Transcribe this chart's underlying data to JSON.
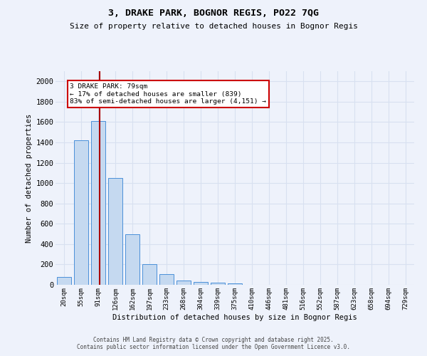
{
  "title1": "3, DRAKE PARK, BOGNOR REGIS, PO22 7QG",
  "title2": "Size of property relative to detached houses in Bognor Regis",
  "xlabel": "Distribution of detached houses by size in Bognor Regis",
  "ylabel": "Number of detached properties",
  "categories": [
    "20sqm",
    "55sqm",
    "91sqm",
    "126sqm",
    "162sqm",
    "197sqm",
    "233sqm",
    "268sqm",
    "304sqm",
    "339sqm",
    "375sqm",
    "410sqm",
    "446sqm",
    "481sqm",
    "516sqm",
    "552sqm",
    "587sqm",
    "623sqm",
    "658sqm",
    "694sqm",
    "729sqm"
  ],
  "values": [
    80,
    1420,
    1610,
    1050,
    495,
    205,
    105,
    40,
    30,
    20,
    15,
    0,
    0,
    0,
    0,
    0,
    0,
    0,
    0,
    0,
    0
  ],
  "bar_color": "#c5d9f0",
  "bar_edge_color": "#4a90d9",
  "vline_color": "#aa0000",
  "vline_pos": 2.1,
  "annotation_text": "3 DRAKE PARK: 79sqm\n← 17% of detached houses are smaller (839)\n83% of semi-detached houses are larger (4,151) →",
  "annotation_box_facecolor": "#ffffff",
  "annotation_box_edgecolor": "#cc0000",
  "ylim": [
    0,
    2100
  ],
  "yticks": [
    0,
    200,
    400,
    600,
    800,
    1000,
    1200,
    1400,
    1600,
    1800,
    2000
  ],
  "background_color": "#eef2fb",
  "grid_color": "#d8e0f0",
  "footer1": "Contains HM Land Registry data © Crown copyright and database right 2025.",
  "footer2": "Contains public sector information licensed under the Open Government Licence v3.0."
}
